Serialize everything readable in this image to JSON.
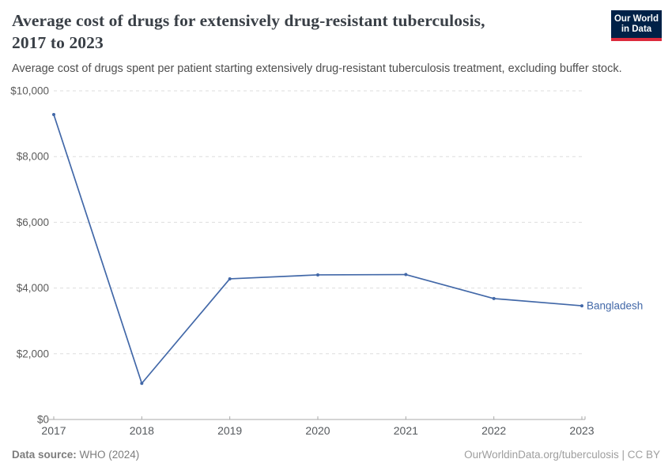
{
  "header": {
    "title_line1": "Average cost of drugs for extensively drug-resistant tuberculosis,",
    "title_line2": "2017 to 2023",
    "subtitle": "Average cost of drugs spent per patient starting extensively drug-resistant tuberculosis treatment, excluding buffer stock.",
    "logo": {
      "line1": "Our World",
      "line2": "in Data",
      "bg_color": "#002147",
      "accent_color": "#dc2a3c"
    }
  },
  "chart_data": {
    "type": "line",
    "title": "Average cost of drugs for extensively drug-resistant tuberculosis, 2017 to 2023",
    "subtitle": "Average cost of drugs spent per patient starting extensively drug-resistant tuberculosis treatment, excluding buffer stock.",
    "x": [
      2017,
      2018,
      2019,
      2020,
      2021,
      2022,
      2023
    ],
    "x_tick_labels": [
      "2017",
      "2018",
      "2019",
      "2020",
      "2021",
      "2022",
      "2023"
    ],
    "series": [
      {
        "name": "Bangladesh",
        "color": "#4268a8",
        "values": [
          9280,
          1100,
          4280,
          4400,
          4410,
          3680,
          3460
        ]
      }
    ],
    "ylim": [
      0,
      10000
    ],
    "y_ticks": [
      {
        "v": 0,
        "label": "$0"
      },
      {
        "v": 2000,
        "label": "$2,000"
      },
      {
        "v": 4000,
        "label": "$4,000"
      },
      {
        "v": 6000,
        "label": "$6,000"
      },
      {
        "v": 8000,
        "label": "$8,000"
      },
      {
        "v": 10000,
        "label": "$10,000"
      }
    ],
    "grid": "horizontal-dashed",
    "legend_position": "end-of-line-label",
    "xlabel": "",
    "ylabel": ""
  },
  "footer": {
    "source_label": "Data source:",
    "source_value": " WHO (2024)",
    "right_text": "OurWorldinData.org/tuberculosis | CC BY"
  }
}
